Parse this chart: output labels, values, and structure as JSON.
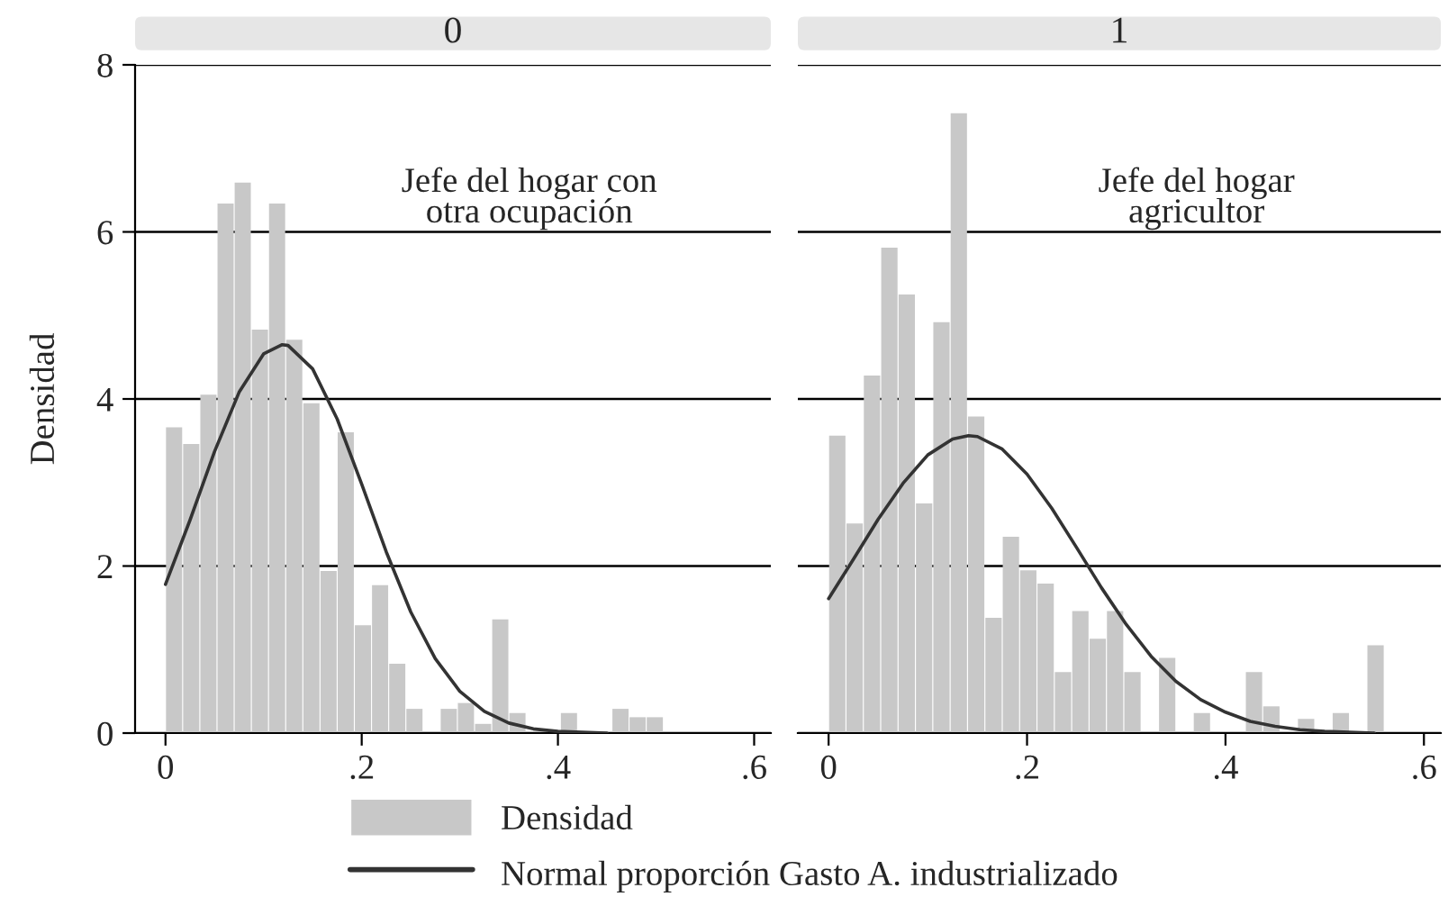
{
  "chart_data": [
    {
      "type": "histogram",
      "title": "0",
      "ylabel": "Densidad",
      "annotations": [
        "Jefe del hogar con\notra ocupación"
      ],
      "series": [
        {
          "name": "Densidad",
          "color": "#c8c8c8",
          "bins": [
            0,
            0.0175,
            0.035,
            0.0525,
            0.07,
            0.0875,
            0.105,
            0.1225,
            0.14,
            0.1575,
            0.175,
            0.1925,
            0.21,
            0.2275,
            0.245,
            0.2625,
            0.28,
            0.2975,
            0.315,
            0.3325,
            0.35,
            0.3675,
            0.385,
            0.4025,
            0.42,
            0.4375,
            0.455,
            0.4725,
            0.49,
            0.5075
          ],
          "values": [
            3.66,
            3.46,
            4.05,
            6.34,
            6.59,
            4.83,
            6.34,
            4.71,
            3.95,
            1.94,
            3.6,
            1.29,
            1.77,
            0.83,
            0.29,
            0,
            0.29,
            0.36,
            0.11,
            1.36,
            0.24,
            0,
            0,
            0.24,
            0,
            0,
            0.29,
            0.19,
            0.19
          ]
        },
        {
          "type": "line",
          "name": "Normal proporción Gasto A. industrializado",
          "color": "#333333",
          "x": [
            0,
            0.025,
            0.05,
            0.075,
            0.1,
            0.119,
            0.125,
            0.15,
            0.175,
            0.2,
            0.225,
            0.25,
            0.275,
            0.3,
            0.325,
            0.35,
            0.375,
            0.4,
            0.425,
            0.45
          ],
          "values": [
            1.78,
            2.55,
            3.37,
            4.08,
            4.54,
            4.65,
            4.64,
            4.36,
            3.76,
            2.98,
            2.17,
            1.45,
            0.89,
            0.5,
            0.26,
            0.12,
            0.05,
            0.02,
            0.01,
            0
          ]
        }
      ],
      "xlim": [
        -0.031,
        0.617
      ],
      "xticks": [
        0,
        {
          "value": 0.2,
          "label": ".2"
        },
        {
          "value": 0.4,
          "label": ".4"
        },
        {
          "value": 0.6,
          "label": ".6"
        }
      ],
      "ylim": [
        0,
        8
      ],
      "yticks": [
        0,
        2,
        4,
        6,
        8
      ],
      "grid": "y",
      "legend": "bottom"
    },
    {
      "type": "histogram",
      "title": "1",
      "annotations": [
        "Jefe del hogar\nagricultor"
      ],
      "series": [
        {
          "color": "#c8c8c8",
          "bins": [
            0,
            0.0175,
            0.035,
            0.0525,
            0.07,
            0.0875,
            0.105,
            0.1225,
            0.14,
            0.1575,
            0.175,
            0.1925,
            0.21,
            0.2275,
            0.245,
            0.2625,
            0.28,
            0.2975,
            0.315,
            0.3325,
            0.35,
            0.3675,
            0.385,
            0.4025,
            0.42,
            0.4375,
            0.455,
            0.4725,
            0.49,
            0.5075,
            0.525,
            0.5425,
            0.56
          ],
          "values": [
            3.56,
            2.51,
            4.28,
            5.81,
            5.25,
            2.75,
            4.92,
            7.42,
            3.79,
            1.38,
            2.35,
            1.95,
            1.79,
            0.73,
            1.46,
            1.13,
            1.46,
            0.73,
            0,
            0.9,
            0,
            0.24,
            0,
            0,
            0.73,
            0.32,
            0,
            0.17,
            0,
            0.24,
            0,
            1.05
          ]
        },
        {
          "type": "line",
          "color": "#333333",
          "x": [
            0,
            0.025,
            0.05,
            0.075,
            0.1,
            0.125,
            0.141,
            0.15,
            0.175,
            0.2,
            0.225,
            0.25,
            0.275,
            0.3,
            0.325,
            0.35,
            0.375,
            0.4,
            0.425,
            0.45,
            0.475,
            0.5,
            0.525,
            0.55
          ],
          "values": [
            1.61,
            2.08,
            2.56,
            2.99,
            3.33,
            3.52,
            3.56,
            3.55,
            3.4,
            3.1,
            2.69,
            2.22,
            1.74,
            1.3,
            0.92,
            0.62,
            0.4,
            0.25,
            0.14,
            0.08,
            0.04,
            0.02,
            0.01,
            0
          ]
        }
      ],
      "xlim": [
        -0.031,
        0.617
      ],
      "xticks": [
        0,
        {
          "value": 0.2,
          "label": ".2"
        },
        {
          "value": 0.4,
          "label": ".4"
        },
        {
          "value": 0.6,
          "label": ".6"
        }
      ],
      "ylim": [
        0,
        8
      ],
      "yticks": [
        0,
        2,
        4,
        6,
        8
      ],
      "grid": "y",
      "tick_labels": "x"
    }
  ]
}
